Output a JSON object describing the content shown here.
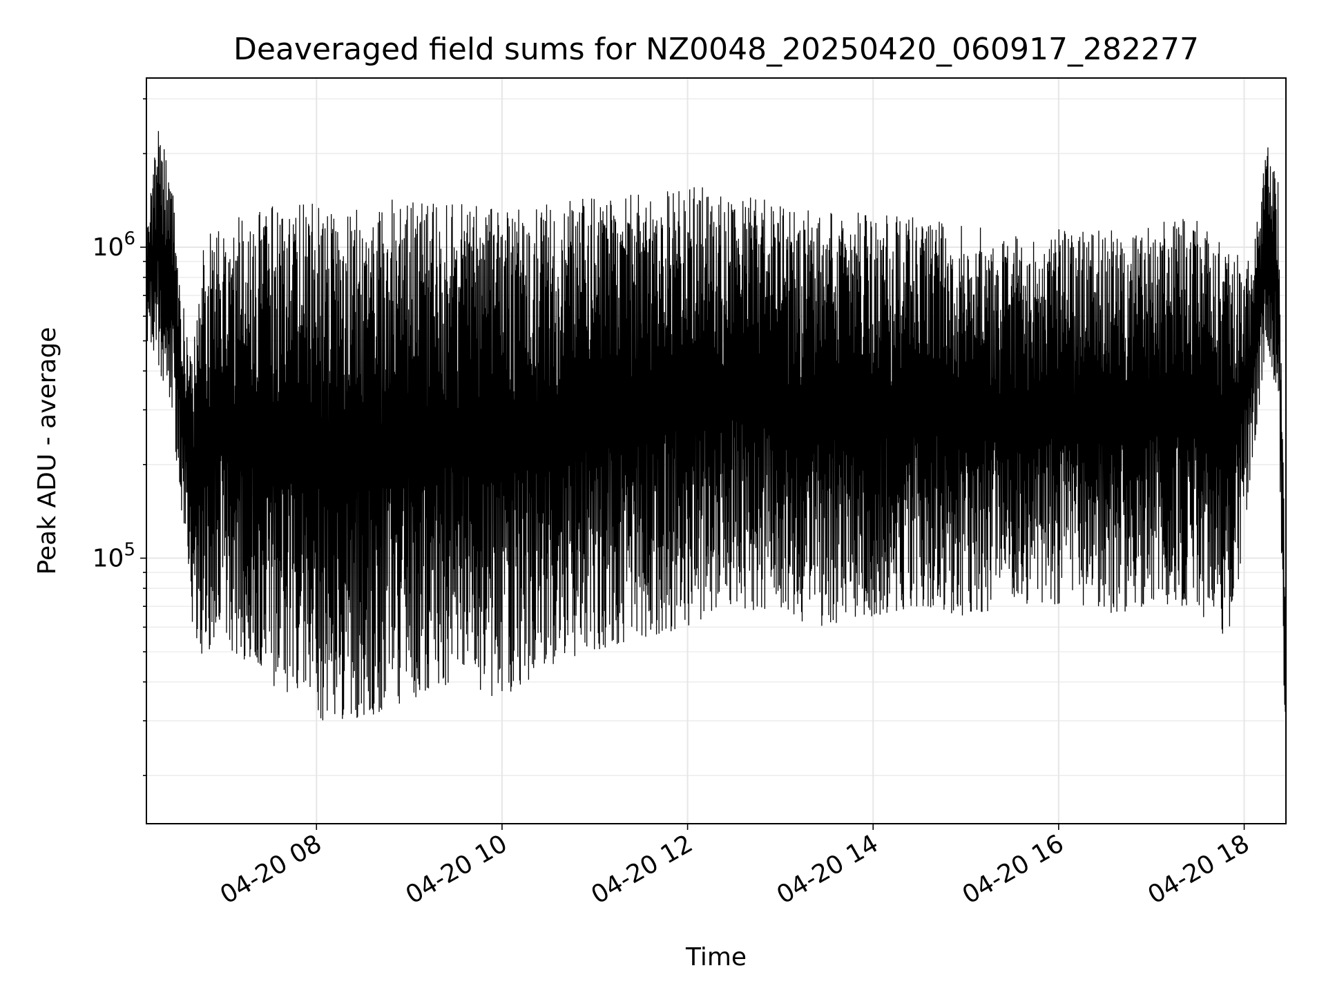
{
  "chart_data": {
    "type": "line",
    "title": "Deaveraged field sums for NZ0048_20250420_060917_282277",
    "xlabel": "Time",
    "ylabel": "Peak ADU - average",
    "yscale": "log",
    "grid": true,
    "xlim": [
      "2025-04-20 06:10",
      "2025-04-20 18:27"
    ],
    "ylim": [
      14000,
      3500000
    ],
    "x_ticks": [
      {
        "value": "2025-04-20 08:00",
        "label": "04-20 08"
      },
      {
        "value": "2025-04-20 10:00",
        "label": "04-20 10"
      },
      {
        "value": "2025-04-20 12:00",
        "label": "04-20 12"
      },
      {
        "value": "2025-04-20 14:00",
        "label": "04-20 14"
      },
      {
        "value": "2025-04-20 16:00",
        "label": "04-20 16"
      },
      {
        "value": "2025-04-20 18:00",
        "label": "04-20 18"
      }
    ],
    "y_ticks": [
      {
        "value": 100000,
        "base": "10",
        "exp": "5"
      },
      {
        "value": 1000000,
        "base": "10",
        "exp": "6"
      }
    ],
    "line_color": "#000000",
    "series": [
      {
        "x": [
          "2025-04-20 06:10",
          "2025-04-20 06:18",
          "2025-04-20 06:26",
          "2025-04-20 06:32",
          "2025-04-20 06:40",
          "2025-04-20 06:48",
          "2025-04-20 06:56",
          "2025-04-20 07:05",
          "2025-04-20 07:20",
          "2025-04-20 07:40",
          "2025-04-20 08:00",
          "2025-04-20 08:30",
          "2025-04-20 09:00",
          "2025-04-20 09:30",
          "2025-04-20 10:00",
          "2025-04-20 10:30",
          "2025-04-20 11:00",
          "2025-04-20 11:30",
          "2025-04-20 12:00",
          "2025-04-20 12:30",
          "2025-04-20 13:00",
          "2025-04-20 13:30",
          "2025-04-20 14:00",
          "2025-04-20 14:30",
          "2025-04-20 15:00",
          "2025-04-20 15:30",
          "2025-04-20 16:00",
          "2025-04-20 16:30",
          "2025-04-20 17:00",
          "2025-04-20 17:30",
          "2025-04-20 17:50",
          "2025-04-20 18:05",
          "2025-04-20 18:15",
          "2025-04-20 18:22",
          "2025-04-20 18:27"
        ],
        "low": [
          500000,
          400000,
          300000,
          150000,
          60000,
          45000,
          55000,
          50000,
          45000,
          35000,
          30000,
          30000,
          35000,
          40000,
          35000,
          45000,
          50000,
          55000,
          60000,
          70000,
          65000,
          60000,
          65000,
          70000,
          65000,
          70000,
          70000,
          65000,
          70000,
          70000,
          45000,
          200000,
          500000,
          300000,
          20000
        ],
        "high": [
          1100000,
          2600000,
          1800000,
          700000,
          500000,
          1100000,
          1200000,
          1300000,
          1300000,
          1400000,
          1400000,
          1400000,
          1450000,
          1400000,
          1350000,
          1400000,
          1450000,
          1500000,
          1600000,
          1500000,
          1400000,
          1300000,
          1300000,
          1250000,
          1200000,
          1150000,
          1150000,
          1150000,
          1200000,
          1250000,
          1000000,
          900000,
          2300000,
          1700000,
          60000
        ]
      }
    ]
  }
}
